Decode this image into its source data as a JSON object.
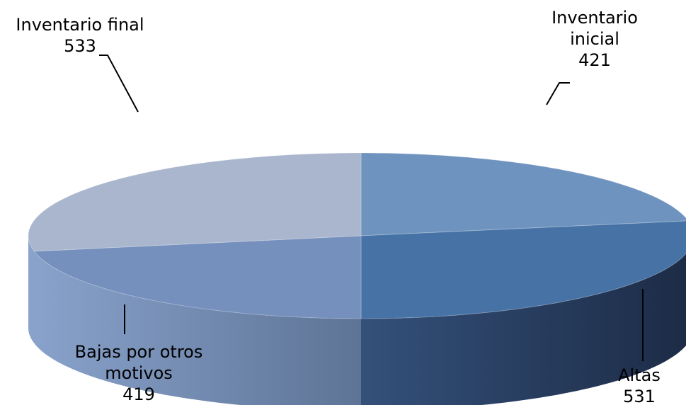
{
  "chart_data": {
    "type": "pie",
    "style": "3d",
    "categories": [
      "Inventario inicial",
      "Altas",
      "Bajas por otros motivos",
      "Inventario final"
    ],
    "values": [
      421,
      531,
      419,
      533
    ],
    "colors": [
      "#6f93bf",
      "#4672a5",
      "#7590bd",
      "#a9b6cd"
    ],
    "legend": "none",
    "data_labels": [
      {
        "name_lines": [
          "Inventario",
          "inicial"
        ],
        "value": "421"
      },
      {
        "name_lines": [
          "Altas"
        ],
        "value": "531"
      },
      {
        "name_lines": [
          "Bajas por otros",
          "motivos"
        ],
        "value": "419"
      },
      {
        "name_lines": [
          "Inventario final"
        ],
        "value": "533"
      }
    ]
  }
}
